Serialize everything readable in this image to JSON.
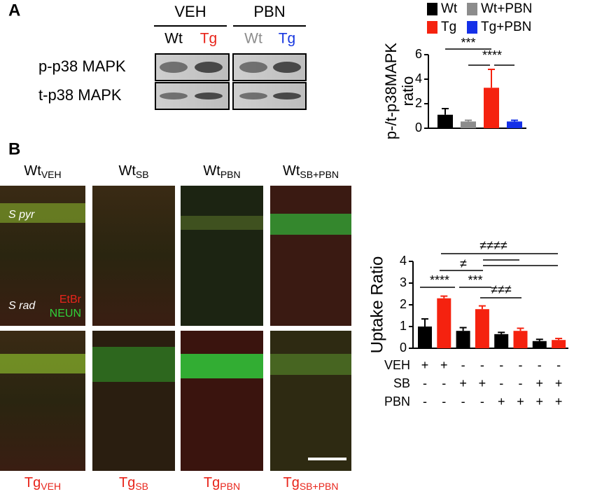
{
  "panel_labels": [
    "A",
    "B"
  ],
  "blot": {
    "groups": [
      "VEH",
      "PBN"
    ],
    "lanes": [
      {
        "label": "Wt",
        "color": "#000000"
      },
      {
        "label": "Tg",
        "color": "#e8251b"
      },
      {
        "label": "Wt",
        "color": "#8c8c8c"
      },
      {
        "label": "Tg",
        "color": "#1838e0"
      }
    ],
    "rows": [
      "p-p38 MAPK",
      "t-p38 MAPK"
    ]
  },
  "micrographs": {
    "top": [
      {
        "base": "Wt",
        "sub": "VEH"
      },
      {
        "base": "Wt",
        "sub": "SB"
      },
      {
        "base": "Wt",
        "sub": "PBN"
      },
      {
        "base": "Wt",
        "sub": "SB+PBN"
      }
    ],
    "bottom": [
      {
        "base": "Tg",
        "sub": "VEH"
      },
      {
        "base": "Tg",
        "sub": "SB"
      },
      {
        "base": "Tg",
        "sub": "PBN"
      },
      {
        "base": "Tg",
        "sub": "SB+PBN"
      }
    ],
    "overlays": [
      "S pyr",
      "S rad"
    ],
    "stains": [
      {
        "label": "EtBr",
        "color": "#e8251b"
      },
      {
        "label": "NEUN",
        "color": "#2fd33a"
      }
    ]
  },
  "chart_data": [
    {
      "type": "bar",
      "ylabel": [
        "p-/t-p38MAPK",
        "ratio"
      ],
      "ylim": [
        0,
        6
      ],
      "yticks": [
        0,
        2,
        4,
        6
      ],
      "series": [
        {
          "name": "Wt",
          "color": "#000000",
          "values": [
            1.1
          ],
          "errors": [
            0.5
          ]
        },
        {
          "name": "Wt+PBN",
          "color": "#8c8c8c",
          "values": [
            0.55
          ],
          "errors": [
            0.1
          ]
        },
        {
          "name": "Tg",
          "color": "#f5220f",
          "values": [
            3.3
          ],
          "errors": [
            1.5
          ]
        },
        {
          "name": "Tg+PBN",
          "color": "#1530e8",
          "values": [
            0.55
          ],
          "errors": [
            0.1
          ]
        }
      ],
      "annotations": [
        "***",
        "****"
      ]
    },
    {
      "type": "bar",
      "ylabel": "Uptake Ratio",
      "ylim": [
        0,
        4
      ],
      "yticks": [
        0,
        1,
        2,
        3,
        4
      ],
      "values": [
        1.0,
        2.3,
        0.8,
        1.8,
        0.65,
        0.8,
        0.33,
        0.38
      ],
      "errors": [
        0.35,
        0.1,
        0.15,
        0.15,
        0.08,
        0.12,
        0.08,
        0.07
      ],
      "colors": [
        "#000000",
        "#f5220f",
        "#000000",
        "#f5220f",
        "#000000",
        "#f5220f",
        "#000000",
        "#f5220f"
      ],
      "conditions": [
        {
          "name": "VEH",
          "signs": [
            "+",
            "+",
            "-",
            "-",
            "-",
            "-",
            "-",
            "-"
          ]
        },
        {
          "name": "SB",
          "signs": [
            "-",
            "-",
            "+",
            "+",
            "-",
            "-",
            "+",
            "+"
          ]
        },
        {
          "name": "PBN",
          "signs": [
            "-",
            "-",
            "-",
            "-",
            "+",
            "+",
            "+",
            "+"
          ]
        }
      ],
      "annotations": [
        "****",
        "***",
        "≠",
        "≠≠≠",
        "≠≠≠≠"
      ]
    }
  ]
}
